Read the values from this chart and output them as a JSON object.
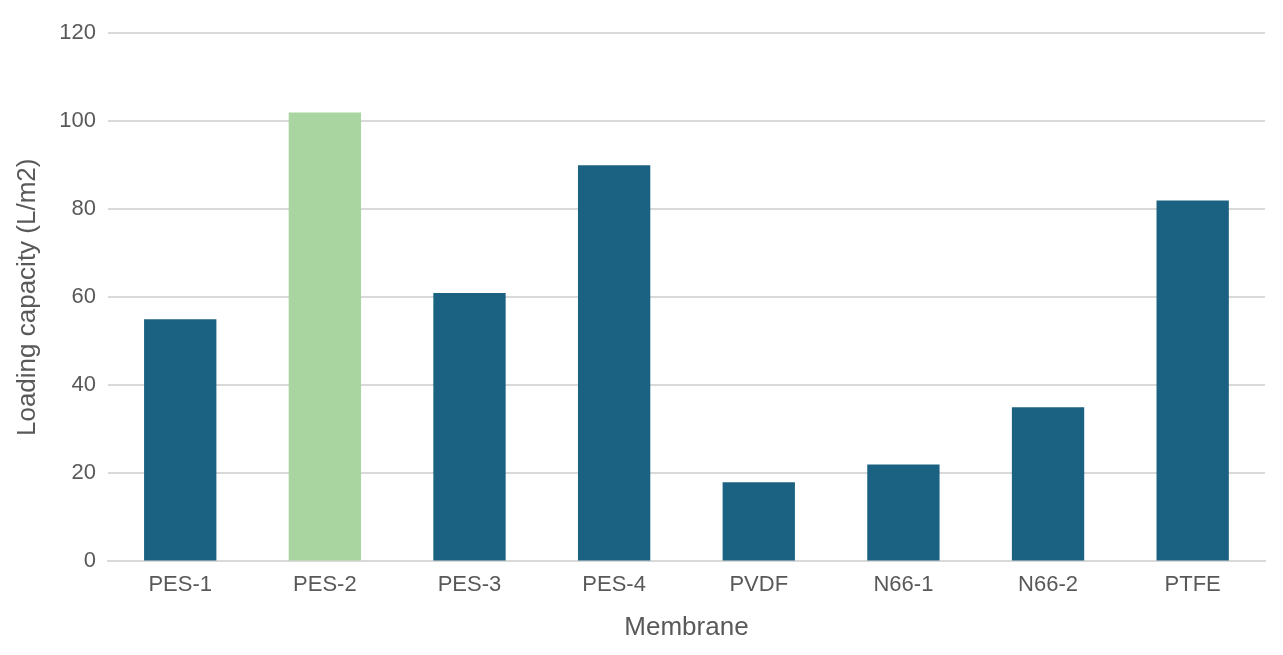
{
  "chart_data": {
    "type": "bar",
    "xlabel": "Membrane",
    "ylabel": "Loading capacity (L/m2)",
    "categories": [
      "PES-1",
      "PES-2",
      "PES-3",
      "PES-4",
      "PVDF",
      "N66-1",
      "N66-2",
      "PTFE"
    ],
    "values": [
      55,
      102,
      61,
      90,
      18,
      22,
      35,
      82
    ],
    "colors": [
      "#1b6282",
      "#a9d5a0",
      "#1b6282",
      "#1b6282",
      "#1b6282",
      "#1b6282",
      "#1b6282",
      "#1b6282"
    ],
    "ylim": [
      0,
      120
    ],
    "yticks": [
      0,
      20,
      40,
      60,
      80,
      100,
      120
    ],
    "grid": "y",
    "legend": false
  }
}
